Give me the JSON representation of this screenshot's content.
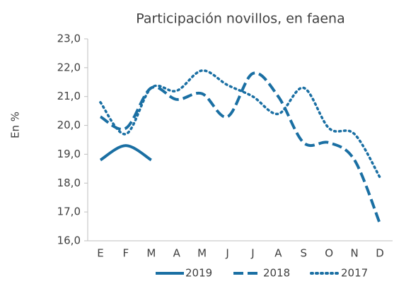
{
  "chart_data": {
    "type": "line",
    "title": "Participación novillos, en faena",
    "y_label": "En %",
    "categories": [
      "E",
      "F",
      "M",
      "A",
      "M",
      "J",
      "J",
      "A",
      "S",
      "O",
      "N",
      "D"
    ],
    "series": [
      {
        "name": "2019",
        "color": "#1a6fa3",
        "dash": "solid",
        "values": [
          18.8,
          19.3,
          18.8,
          null,
          null,
          null,
          null,
          null,
          null,
          null,
          null,
          null
        ]
      },
      {
        "name": "2018",
        "color": "#1a6fa3",
        "dash": "dashed",
        "values": [
          20.3,
          19.9,
          21.3,
          20.9,
          21.1,
          20.3,
          21.8,
          21.0,
          19.4,
          19.4,
          18.8,
          16.6
        ]
      },
      {
        "name": "2017",
        "color": "#1a6fa3",
        "dash": "dotted",
        "values": [
          20.8,
          19.7,
          21.3,
          21.2,
          21.9,
          21.4,
          21.0,
          20.4,
          21.3,
          19.9,
          19.7,
          18.2
        ]
      }
    ],
    "ylim": [
      16,
      23
    ],
    "yticks": [
      {
        "value": 16,
        "label": "16,0"
      },
      {
        "value": 17,
        "label": "17,0"
      },
      {
        "value": 18,
        "label": "18,0"
      },
      {
        "value": 19,
        "label": "19,0"
      },
      {
        "value": 20,
        "label": "20,0"
      },
      {
        "value": 21,
        "label": "21,0"
      },
      {
        "value": 22,
        "label": "22,0"
      },
      {
        "value": 23,
        "label": "23,0"
      }
    ],
    "legend": "bottom"
  }
}
